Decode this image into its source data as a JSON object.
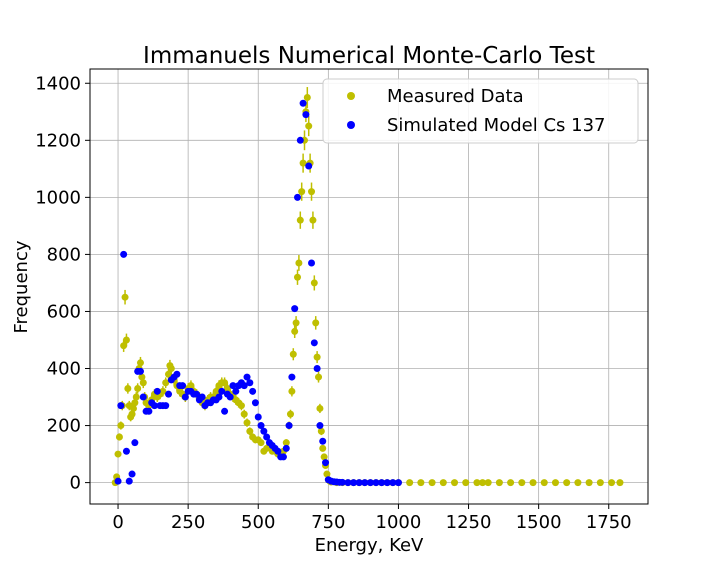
{
  "chart_data": {
    "type": "scatter",
    "title": "Immanuels Numerical Monte-Carlo Test",
    "xlabel": "Energy, KeV",
    "ylabel": "Frequency",
    "xlim": [
      -100,
      1890
    ],
    "ylim": [
      -75,
      1450
    ],
    "xticks": [
      0,
      250,
      500,
      750,
      1000,
      1250,
      1500,
      1750
    ],
    "yticks": [
      0,
      200,
      400,
      600,
      800,
      1000,
      1200,
      1400
    ],
    "grid": true,
    "legend_position": "top-right",
    "series": [
      {
        "name": "Measured Data",
        "color": "#bfbf00",
        "error_bars": true,
        "x": [
          -10,
          -5,
          0,
          5,
          10,
          15,
          20,
          25,
          30,
          35,
          40,
          45,
          50,
          55,
          60,
          65,
          70,
          75,
          80,
          85,
          90,
          95,
          100,
          110,
          120,
          130,
          140,
          150,
          160,
          170,
          180,
          185,
          190,
          200,
          210,
          220,
          230,
          240,
          250,
          260,
          270,
          280,
          290,
          300,
          310,
          320,
          330,
          340,
          350,
          360,
          370,
          380,
          390,
          400,
          410,
          420,
          430,
          440,
          450,
          460,
          470,
          480,
          490,
          500,
          510,
          520,
          530,
          540,
          550,
          560,
          570,
          580,
          590,
          600,
          610,
          615,
          620,
          625,
          630,
          635,
          640,
          645,
          650,
          655,
          660,
          665,
          670,
          675,
          680,
          685,
          690,
          695,
          700,
          705,
          710,
          715,
          720,
          725,
          730,
          735,
          740,
          745,
          750,
          755,
          760,
          780,
          800,
          820,
          840,
          860,
          880,
          900,
          920,
          940,
          960,
          980,
          1000,
          1040,
          1080,
          1120,
          1160,
          1200,
          1240,
          1280,
          1300,
          1320,
          1360,
          1400,
          1440,
          1480,
          1520,
          1560,
          1600,
          1640,
          1680,
          1720,
          1760,
          1790
        ],
        "y": [
          0,
          20,
          100,
          160,
          200,
          270,
          480,
          650,
          500,
          330,
          270,
          230,
          240,
          260,
          280,
          300,
          330,
          400,
          420,
          370,
          350,
          300,
          280,
          270,
          290,
          310,
          300,
          310,
          320,
          350,
          380,
          410,
          400,
          360,
          340,
          320,
          310,
          300,
          330,
          340,
          320,
          310,
          300,
          280,
          270,
          290,
          300,
          300,
          320,
          340,
          350,
          350,
          330,
          310,
          300,
          290,
          280,
          270,
          240,
          210,
          180,
          160,
          150,
          150,
          140,
          110,
          120,
          130,
          110,
          110,
          100,
          100,
          110,
          140,
          200,
          240,
          320,
          450,
          530,
          560,
          720,
          770,
          920,
          1020,
          1120,
          1200,
          1300,
          1350,
          1250,
          1120,
          1020,
          920,
          700,
          560,
          440,
          370,
          260,
          180,
          120,
          90,
          60,
          30,
          10,
          5,
          2,
          0,
          0,
          0,
          0,
          0,
          0,
          0,
          0,
          0,
          0,
          0,
          0,
          0,
          0,
          0,
          0,
          0,
          0,
          0,
          0,
          0,
          0,
          0,
          0,
          0,
          0,
          0,
          0,
          0,
          0,
          0,
          0,
          0
        ]
      },
      {
        "name": "Simulated Model Cs 137",
        "color": "#0000ff",
        "error_bars": false,
        "x": [
          0,
          10,
          20,
          30,
          40,
          50,
          60,
          70,
          80,
          90,
          100,
          110,
          120,
          130,
          140,
          150,
          160,
          170,
          180,
          190,
          200,
          210,
          220,
          230,
          240,
          250,
          260,
          270,
          280,
          290,
          300,
          310,
          320,
          330,
          340,
          350,
          360,
          370,
          380,
          390,
          400,
          410,
          420,
          430,
          440,
          450,
          460,
          470,
          480,
          490,
          500,
          510,
          520,
          530,
          540,
          550,
          560,
          570,
          580,
          590,
          600,
          610,
          620,
          630,
          640,
          650,
          660,
          670,
          680,
          690,
          700,
          710,
          720,
          730,
          740,
          750,
          760,
          770,
          780,
          790,
          800,
          820,
          840,
          860,
          880,
          900,
          920,
          940,
          960,
          980,
          1000
        ],
        "y": [
          5,
          270,
          800,
          110,
          5,
          30,
          140,
          390,
          390,
          300,
          250,
          250,
          280,
          270,
          320,
          270,
          270,
          270,
          310,
          360,
          370,
          380,
          340,
          340,
          300,
          320,
          320,
          310,
          310,
          290,
          300,
          270,
          280,
          280,
          290,
          290,
          300,
          320,
          250,
          310,
          300,
          340,
          320,
          340,
          350,
          340,
          370,
          350,
          320,
          280,
          230,
          200,
          180,
          160,
          140,
          130,
          120,
          110,
          90,
          90,
          120,
          200,
          370,
          610,
          1000,
          1200,
          1330,
          1290,
          1110,
          770,
          490,
          400,
          200,
          145,
          70,
          10,
          5,
          3,
          2,
          1,
          1,
          0,
          0,
          0,
          0,
          0,
          0,
          0,
          0,
          0,
          0
        ]
      }
    ]
  }
}
